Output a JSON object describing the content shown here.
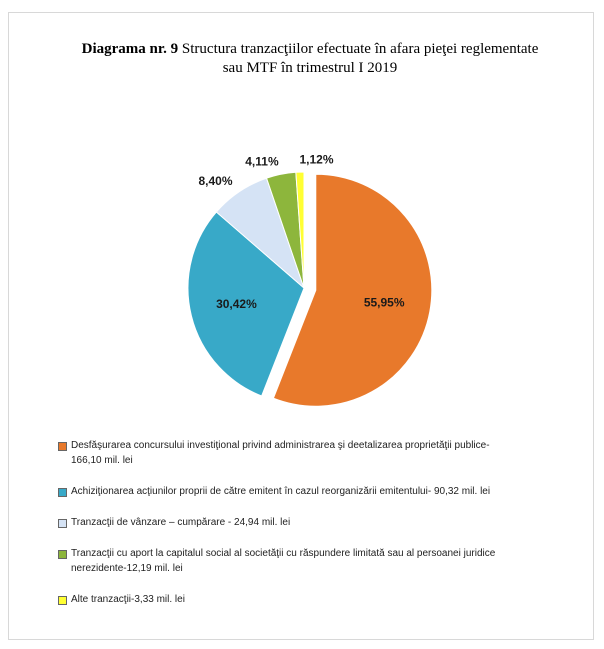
{
  "chart_data": {
    "type": "pie",
    "title_bold": "Diagrama nr. 9",
    "title": "Structura tranzacţiilor efectuate în afara pieţei reglementate sau MTF în trimestrul I 2019",
    "series": [
      {
        "name": "Desfăşurarea concursului investiţional privind administrarea şi deetalizarea proprietăţii publice-166,10 mil. lei",
        "color": "#e8792b",
        "values": [
          55.95
        ],
        "value_labels": [
          "55,95%"
        ]
      },
      {
        "name": "Achiziţionarea acţiunilor proprii de către emitent în cazul reorganizării emitentului- 90,32 mil. lei",
        "color": "#38a9c8",
        "values": [
          30.42
        ],
        "value_labels": [
          "30,42%"
        ]
      },
      {
        "name": "Tranzacţii de vânzare – cumpărare - 24,94 mil. lei",
        "color": "#d5e3f5",
        "values": [
          8.4
        ],
        "value_labels": [
          "8,40%"
        ]
      },
      {
        "name": "Tranzacţii cu aport la capitalul social al societăţii cu răspundere limitată sau al persoanei juridice nerezidente-12,19 mil. lei",
        "color": "#8db63c",
        "values": [
          4.11
        ],
        "value_labels": [
          "4,11%"
        ]
      },
      {
        "name": "Alte tranzacţii-3,33 mil. lei",
        "color": "#ffff33",
        "values": [
          1.12
        ],
        "value_labels": [
          "1,12%"
        ]
      }
    ]
  }
}
